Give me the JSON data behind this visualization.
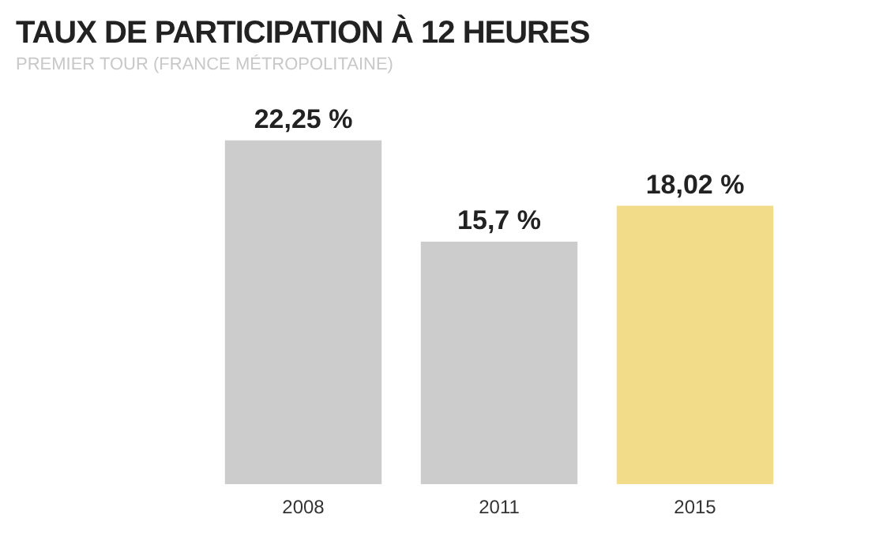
{
  "chart_data": {
    "type": "bar",
    "title": "TAUX DE PARTICIPATION À 12 HEURES",
    "subtitle": "PREMIER TOUR (FRANCE MÉTROPOLITAINE)",
    "categories": [
      "2008",
      "2011",
      "2015"
    ],
    "values": [
      22.25,
      15.7,
      18.02
    ],
    "colors": [
      "#cccccc",
      "#cccccc",
      "#f2dc8a"
    ],
    "value_labels": [
      "22,25 %",
      "15,7 %",
      "18,02 %"
    ],
    "grid": false,
    "legend": false
  }
}
